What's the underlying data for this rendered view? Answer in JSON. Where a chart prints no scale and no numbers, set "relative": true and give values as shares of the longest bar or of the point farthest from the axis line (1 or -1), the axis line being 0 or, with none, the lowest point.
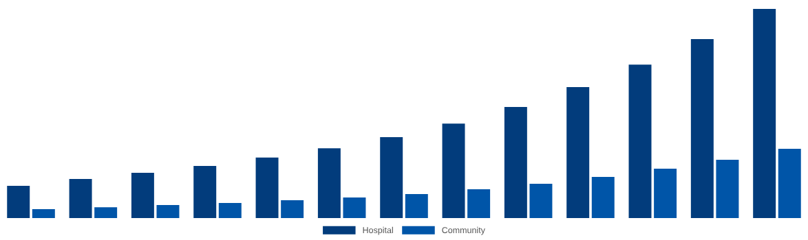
{
  "chart_data": {
    "type": "bar",
    "relative": true,
    "legend": "bottom",
    "grid": false,
    "categories": [
      null,
      null,
      null,
      null,
      null,
      null,
      null,
      null,
      null,
      null,
      null,
      null,
      null
    ],
    "series": [
      {
        "name": "Hospital",
        "color": "#023c7c",
        "values": [
          0.154,
          0.187,
          0.216,
          0.249,
          0.289,
          0.334,
          0.387,
          0.452,
          0.531,
          0.626,
          0.734,
          0.856,
          1
        ]
      },
      {
        "name": "Community",
        "color": "#0055a8",
        "values": [
          0.043,
          0.052,
          0.062,
          0.072,
          0.085,
          0.098,
          0.115,
          0.138,
          0.164,
          0.197,
          0.236,
          0.279,
          0.331
        ]
      }
    ]
  }
}
